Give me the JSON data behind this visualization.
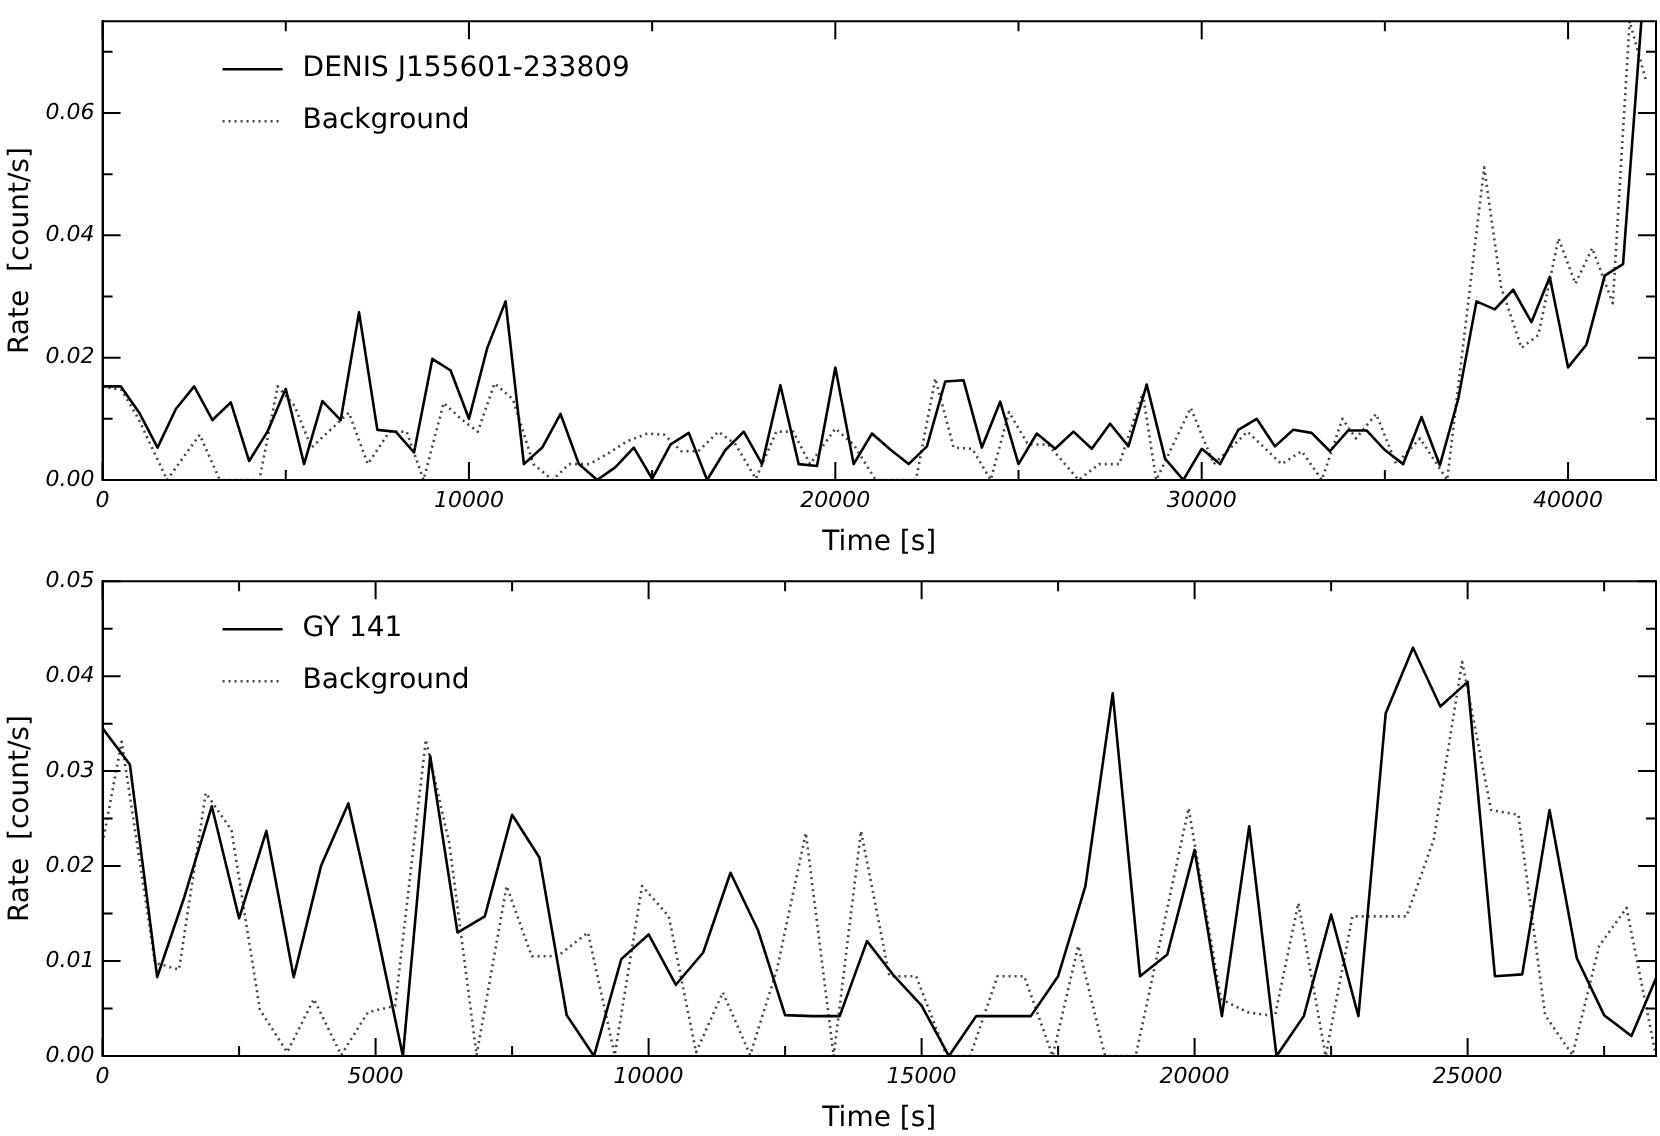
{
  "chart_data": [
    {
      "type": "line",
      "xlabel": "Time [s]",
      "ylabel": "Rate  [count/s]",
      "legend": "top left",
      "grid": false,
      "xlim": [
        0,
        42400
      ],
      "ylim": [
        0,
        0.075
      ],
      "xticks": [
        {
          "value": 0,
          "label": "0"
        },
        {
          "value": 5000,
          "label": null
        },
        {
          "value": 10000,
          "label": "10000"
        },
        {
          "value": 15000,
          "label": null
        },
        {
          "value": 20000,
          "label": "20000"
        },
        {
          "value": 25000,
          "label": null
        },
        {
          "value": 30000,
          "label": "30000"
        },
        {
          "value": 35000,
          "label": null
        },
        {
          "value": 40000,
          "label": "40000"
        }
      ],
      "yticks": [
        {
          "value": 0,
          "label": "0.00"
        },
        {
          "value": 0.01,
          "label": null
        },
        {
          "value": 0.02,
          "label": "0.02"
        },
        {
          "value": 0.03,
          "label": null
        },
        {
          "value": 0.04,
          "label": "0.04"
        },
        {
          "value": 0.05,
          "label": null
        },
        {
          "value": 0.06,
          "label": "0.06"
        },
        {
          "value": 0.07,
          "label": null
        }
      ],
      "series": [
        {
          "name": "DENIS J155601-233809",
          "color": "#000000",
          "line_style": "solid",
          "x": [
            0,
            500,
            1000,
            1500,
            2000,
            2500,
            3000,
            3500,
            4000,
            4500,
            5000,
            5500,
            6000,
            6500,
            7000,
            7500,
            8000,
            8500,
            9000,
            9500,
            10000,
            10500,
            11000,
            11500,
            12000,
            12500,
            13000,
            13500,
            14000,
            14500,
            15000,
            15500,
            16000,
            16500,
            17000,
            17500,
            18000,
            18500,
            19000,
            19500,
            20000,
            20500,
            21000,
            21500,
            22000,
            22500,
            23000,
            23500,
            24000,
            24500,
            25000,
            25500,
            26000,
            26500,
            27000,
            27500,
            28000,
            28500,
            29000,
            29500,
            30000,
            30500,
            31000,
            31500,
            32000,
            32500,
            33000,
            33500,
            34000,
            34500,
            35000,
            35500,
            36000,
            36500,
            37000,
            37500,
            38000,
            38500,
            39000,
            39500,
            40000,
            40500,
            41000,
            41500,
            42000
          ],
          "values": [
            0.0153,
            0.0153,
            0.011,
            0.0053,
            0.0116,
            0.0153,
            0.0098,
            0.0127,
            0.0031,
            0.0079,
            0.0149,
            0.0026,
            0.0129,
            0.0098,
            0.0274,
            0.0082,
            0.0079,
            0.0045,
            0.0198,
            0.0179,
            0.01,
            0.0216,
            0.0292,
            0.0026,
            0.0053,
            0.0108,
            0.0026,
            0,
            0.0021,
            0.0053,
            0.0002,
            0.0058,
            0.0077,
            0,
            0.0049,
            0.0079,
            0.0026,
            0.0155,
            0.0026,
            0.0023,
            0.0184,
            0.0026,
            0.0076,
            0.005,
            0.0026,
            0.0055,
            0.0161,
            0.0163,
            0.0053,
            0.0128,
            0.0026,
            0.0076,
            0.0051,
            0.0079,
            0.0051,
            0.0092,
            0.0055,
            0.0156,
            0.0035,
            0,
            0.0051,
            0.0026,
            0.0082,
            0.01,
            0.0055,
            0.0082,
            0.0077,
            0.0047,
            0.0081,
            0.0081,
            0.0049,
            0.0026,
            0.0103,
            0.0024,
            0.0132,
            0.0292,
            0.0279,
            0.0311,
            0.0258,
            0.0332,
            0.0184,
            0.0221,
            0.0334,
            0.0353,
            0.075
          ]
        },
        {
          "name": "Background",
          "color": "#444444",
          "line_style": "dotted",
          "x": [
            0,
            520,
            980,
            1760,
            2650,
            3200,
            4280,
            4780,
            5240,
            5700,
            6720,
            7240,
            7830,
            8300,
            8760,
            9310,
            9780,
            10240,
            10700,
            11200,
            11760,
            12280,
            12740,
            13300,
            13760,
            14310,
            14870,
            15330,
            15800,
            16260,
            16810,
            17280,
            17830,
            18390,
            18850,
            19310,
            20000,
            20500,
            21100,
            22200,
            22730,
            23230,
            23740,
            24240,
            24740,
            25260,
            25810,
            26640,
            27200,
            27750,
            28390,
            28760,
            29700,
            30330,
            31250,
            32180,
            32730,
            33280,
            33840,
            34210,
            34760,
            35310,
            35960,
            36700,
            37710,
            38170,
            38730,
            39190,
            39740,
            40200,
            40660,
            41220,
            41680,
            42140
          ],
          "values": [
            0.0153,
            0.0147,
            0.01,
            0,
            0.0074,
            0,
            0,
            0.0153,
            0.0121,
            0.0053,
            0.011,
            0.0026,
            0.0079,
            0.0079,
            0,
            0.0126,
            0.01,
            0.0079,
            0.0158,
            0.0132,
            0.0026,
            0,
            0.0026,
            0.0026,
            0.0042,
            0.0063,
            0.0076,
            0.0074,
            0.0047,
            0.0047,
            0.0079,
            0.0058,
            0.0002,
            0.0079,
            0.0079,
            0.0026,
            0.0084,
            0.0058,
            0,
            0,
            0.0166,
            0.0053,
            0.0051,
            0,
            0.0111,
            0.0058,
            0.0058,
            0,
            0.0026,
            0.0026,
            0.0142,
            0,
            0.0118,
            0.0026,
            0.0079,
            0.0026,
            0.0047,
            0,
            0.01,
            0.0068,
            0.0108,
            0.0026,
            0.0068,
            0,
            0.0511,
            0.0316,
            0.0216,
            0.0237,
            0.0395,
            0.0321,
            0.0379,
            0.0289,
            0.075,
            0.065
          ]
        }
      ]
    },
    {
      "type": "line",
      "xlabel": "Time [s]",
      "ylabel": "Rate  [count/s]",
      "legend": "top left",
      "grid": false,
      "xlim": [
        0,
        28450
      ],
      "ylim": [
        0,
        0.05
      ],
      "xticks": [
        {
          "value": 0,
          "label": "0"
        },
        {
          "value": 2500,
          "label": null
        },
        {
          "value": 5000,
          "label": "5000"
        },
        {
          "value": 7500,
          "label": null
        },
        {
          "value": 10000,
          "label": "10000"
        },
        {
          "value": 12500,
          "label": null
        },
        {
          "value": 15000,
          "label": "15000"
        },
        {
          "value": 17500,
          "label": null
        },
        {
          "value": 20000,
          "label": "20000"
        },
        {
          "value": 22500,
          "label": null
        },
        {
          "value": 25000,
          "label": "25000"
        },
        {
          "value": 27500,
          "label": null
        }
      ],
      "yticks": [
        {
          "value": 0,
          "label": "0.00"
        },
        {
          "value": 0.005,
          "label": null
        },
        {
          "value": 0.01,
          "label": "0.01"
        },
        {
          "value": 0.015,
          "label": null
        },
        {
          "value": 0.02,
          "label": "0.02"
        },
        {
          "value": 0.025,
          "label": null
        },
        {
          "value": 0.03,
          "label": "0.03"
        },
        {
          "value": 0.035,
          "label": null
        },
        {
          "value": 0.04,
          "label": "0.04"
        },
        {
          "value": 0.045,
          "label": null
        },
        {
          "value": 0.05,
          "label": "0.05"
        }
      ],
      "series": [
        {
          "name": "GY 141",
          "color": "#000000",
          "line_style": "solid",
          "x": [
            0,
            500,
            1000,
            1500,
            2000,
            2500,
            3000,
            3500,
            4000,
            4500,
            5000,
            5500,
            6000,
            6500,
            7000,
            7500,
            8000,
            8500,
            9000,
            9500,
            10000,
            10500,
            11000,
            11500,
            12000,
            12500,
            13000,
            13500,
            14000,
            14500,
            15000,
            15500,
            16000,
            16500,
            17000,
            17500,
            18000,
            18500,
            19000,
            19500,
            20000,
            20500,
            21000,
            21500,
            22000,
            22500,
            23000,
            23500,
            24000,
            24500,
            25000,
            25500,
            26000,
            26500,
            27000,
            27500,
            28000,
            28450
          ],
          "values": [
            0.0345,
            0.0307,
            0.0083,
            0.0168,
            0.0263,
            0.0145,
            0.0237,
            0.0083,
            0.02,
            0.0266,
            0.0137,
            0,
            0.0316,
            0.013,
            0.0147,
            0.0254,
            0.0209,
            0.0043,
            0,
            0.0102,
            0.0128,
            0.0075,
            0.0109,
            0.0193,
            0.0133,
            0.0043,
            0.0042,
            0.0042,
            0.0121,
            0.0084,
            0.0053,
            0,
            0.0042,
            0.0042,
            0.0042,
            0.0084,
            0.0179,
            0.0382,
            0.0084,
            0.0107,
            0.0217,
            0.0042,
            0.0242,
            0,
            0.0042,
            0.0149,
            0.0042,
            0.0361,
            0.043,
            0.0368,
            0.0394,
            0.0084,
            0.0086,
            0.0259,
            0.0103,
            0.0043,
            0.0021,
            0.0082
          ]
        },
        {
          "name": "Background",
          "color": "#444444",
          "line_style": "dotted",
          "x": [
            0,
            350,
            960,
            1400,
            1890,
            2360,
            2880,
            3380,
            3870,
            4370,
            4860,
            5360,
            5920,
            6350,
            6850,
            7400,
            7860,
            8330,
            8890,
            9380,
            9880,
            10370,
            10870,
            11360,
            11860,
            12350,
            12880,
            13390,
            13890,
            14410,
            14900,
            15460,
            15890,
            16390,
            16880,
            17400,
            17870,
            18360,
            18920,
            19890,
            20480,
            20970,
            21470,
            21900,
            22400,
            22890,
            23390,
            23880,
            24380,
            24900,
            25430,
            25930,
            26420,
            26920,
            27410,
            27910,
            28450
          ],
          "values": [
            0.0224,
            0.0331,
            0.0098,
            0.0091,
            0.0277,
            0.0238,
            0.0049,
            0.0004,
            0.006,
            0.0001,
            0.0046,
            0.0053,
            0.0333,
            0.0224,
            0.0001,
            0.0179,
            0.0105,
            0.0105,
            0.013,
            0.0001,
            0.0179,
            0.0147,
            0.0004,
            0.0067,
            0.0001,
            0.0091,
            0.0235,
            0,
            0.0237,
            0.0084,
            0.0084,
            0,
            0,
            0.0084,
            0.0084,
            0,
            0.0116,
            0,
            0,
            0.0261,
            0.006,
            0.0046,
            0.0042,
            0.0161,
            0,
            0.0147,
            0.0147,
            0.0147,
            0.0228,
            0.0415,
            0.0259,
            0.0254,
            0.0043,
            0.0001,
            0.0116,
            0.0156,
            0
          ]
        }
      ]
    }
  ]
}
